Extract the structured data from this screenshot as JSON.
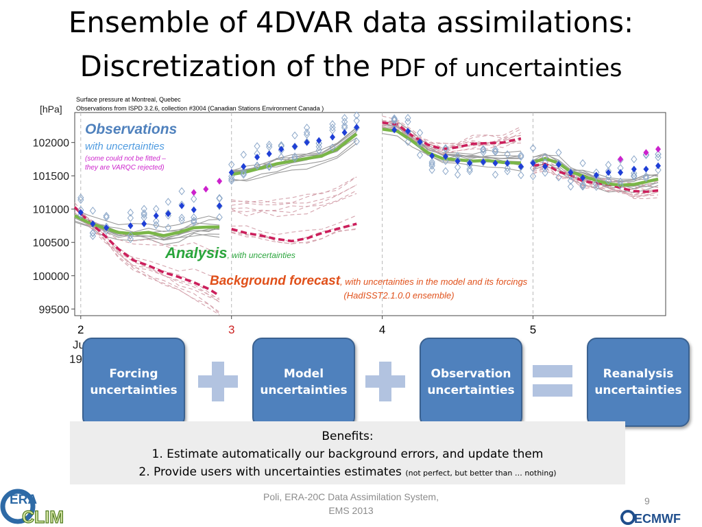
{
  "title": {
    "line1": "Ensemble of 4DVAR data assimilations:",
    "line2_main": "Discretization of the ",
    "line2_small": "PDF of uncertainties"
  },
  "chart_data": {
    "type": "line",
    "source_line1": "Surface pressure at Montreal, Quebec",
    "source_line2": "Observations from ISPD 3.2.6, collection #3004 (Canadian Stations Environment Canada )",
    "ylabel": "[hPa]",
    "ylim": [
      99400,
      102450
    ],
    "yticks": [
      99500,
      100000,
      100500,
      101000,
      101500,
      102000
    ],
    "xticks": [
      {
        "label": "2",
        "x": 2.0,
        "color": "#000000"
      },
      {
        "label": "3",
        "x": 3.0,
        "color": "#cc2222"
      },
      {
        "label": "4",
        "x": 4.0,
        "color": "#000000"
      },
      {
        "label": "5",
        "x": 5.0,
        "color": "#000000"
      }
    ],
    "xlim": [
      1.96,
      5.88
    ],
    "xlabel_partial": [
      "Ju",
      "19"
    ],
    "grid": "vertical dashed at day boundaries",
    "annotations": {
      "observations_title": "Observations",
      "observations_sub": "with uncertainties",
      "observations_note1": "(some could not be fitted –",
      "observations_note2": "they are VARQC rejected)",
      "analysis_title": "Analysis",
      "analysis_sub": ", with uncertainties",
      "background_title": "Background forecast",
      "background_sub": ", with uncertainties in the model and its forcings",
      "background_sub2": "(HadISST2.1.0.0 ensemble)"
    },
    "series": [
      {
        "name": "Observations",
        "kind": "obs-blue",
        "color": "#1f3fd6",
        "x": [
          2.0,
          2.08,
          2.17,
          2.33,
          2.42,
          2.5,
          2.58,
          2.67,
          2.75,
          2.92,
          3.0,
          3.08,
          3.17,
          3.25,
          3.33,
          3.42,
          3.5,
          3.58,
          3.67,
          3.75,
          3.83,
          4.08,
          4.17,
          4.25,
          4.33,
          4.42,
          4.5,
          4.58,
          4.67,
          4.75,
          4.83,
          4.92,
          5.0,
          5.08,
          5.17,
          5.25,
          5.33,
          5.42,
          5.5,
          5.58,
          5.67,
          5.75,
          5.83
        ],
        "y": [
          100950,
          100780,
          100720,
          100750,
          100780,
          100900,
          100930,
          101050,
          100990,
          101050,
          101550,
          101640,
          101780,
          101830,
          101900,
          101940,
          102000,
          102030,
          102080,
          102150,
          102230,
          102190,
          102170,
          102010,
          101800,
          101790,
          101720,
          101690,
          101710,
          101690,
          101690,
          101640,
          101690,
          101640,
          101670,
          101550,
          101470,
          101510,
          101550,
          101550,
          101600,
          101600,
          101650
        ]
      },
      {
        "name": "VARQC rejected",
        "kind": "obs-magenta",
        "color": "#cc22cc",
        "x": [
          2.75,
          2.83,
          2.92,
          5.58,
          5.75,
          5.83
        ],
        "y": [
          101250,
          101300,
          101420,
          101750,
          101850,
          101900
        ]
      },
      {
        "name": "Analysis",
        "kind": "analysis",
        "color": "#7ab648",
        "segments": [
          {
            "x": [
              1.96,
              2.05,
              2.15,
              2.25,
              2.35,
              2.45,
              2.55,
              2.65,
              2.75,
              2.85,
              2.92
            ],
            "y": [
              100900,
              100800,
              100720,
              100650,
              100630,
              100650,
              100600,
              100650,
              100720,
              100730,
              100730
            ]
          },
          {
            "x": [
              3.0,
              3.1,
              3.2,
              3.3,
              3.4,
              3.5,
              3.6,
              3.7,
              3.83
            ],
            "y": [
              101520,
              101560,
              101620,
              101680,
              101720,
              101760,
              101800,
              101900,
              102130
            ]
          },
          {
            "x": [
              4.0,
              4.1,
              4.2,
              4.3,
              4.4,
              4.5,
              4.6,
              4.7,
              4.8,
              4.92
            ],
            "y": [
              102200,
              102170,
              102020,
              101850,
              101760,
              101740,
              101720,
              101730,
              101700,
              101690
            ]
          },
          {
            "x": [
              5.0,
              5.08,
              5.17,
              5.25,
              5.33,
              5.42,
              5.5,
              5.58,
              5.67,
              5.75,
              5.83
            ],
            "y": [
              101700,
              101760,
              101690,
              101560,
              101500,
              101430,
              101380,
              101360,
              101370,
              101410,
              101450
            ]
          }
        ]
      },
      {
        "name": "Background forecast",
        "kind": "background",
        "color": "#cc1f5c",
        "segments": [
          {
            "x": [
              1.96,
              2.05,
              2.15,
              2.25,
              2.35,
              2.45,
              2.55,
              2.65,
              2.75,
              2.85,
              2.92
            ],
            "y": [
              101030,
              100820,
              100620,
              100400,
              100230,
              100150,
              100050,
              99980,
              99900,
              99800,
              99700
            ]
          },
          {
            "x": [
              3.0,
              3.1,
              3.2,
              3.3,
              3.4,
              3.5,
              3.6,
              3.7,
              3.83
            ],
            "y": [
              100700,
              100640,
              100600,
              100550,
              100520,
              100560,
              100640,
              100700,
              100780
            ]
          },
          {
            "x": [
              4.0,
              4.1,
              4.2,
              4.3,
              4.4,
              4.5,
              4.6,
              4.7,
              4.8,
              4.92
            ],
            "y": [
              102300,
              102270,
              102100,
              101970,
              101900,
              101930,
              101980,
              101990,
              102000,
              102060
            ]
          },
          {
            "x": [
              5.0,
              5.08,
              5.17,
              5.25,
              5.33,
              5.42,
              5.5,
              5.58,
              5.67,
              5.75,
              5.83
            ],
            "y": [
              101650,
              101680,
              101560,
              101510,
              101420,
              101390,
              101370,
              101320,
              101270,
              101260,
              101280
            ]
          }
        ]
      }
    ]
  },
  "flow": {
    "box1": {
      "line1": "Forcing",
      "line2": "uncertainties"
    },
    "box2": {
      "line1": "Model",
      "line2": "uncertainties"
    },
    "box3": {
      "line1": "Observation",
      "line2": "uncertainties"
    },
    "box4": {
      "line1": "Reanalysis",
      "line2": "uncertainties"
    },
    "op_color": "#b2c3e0"
  },
  "benefits": {
    "heading": "Benefits:",
    "item1": "1. Estimate automatically our background errors, and update them",
    "item2_main": "2. Provide users with uncertainties estimates ",
    "item2_small": "(not perfect, but better than … nothing)"
  },
  "footer": {
    "line1": "Poli, ERA-20C Data Assimilation System,",
    "line2": "EMS 2013",
    "page": "9"
  },
  "logos": {
    "left_text1": "ERA",
    "left_text2": "CLIM",
    "right_text": "ECMWF"
  }
}
